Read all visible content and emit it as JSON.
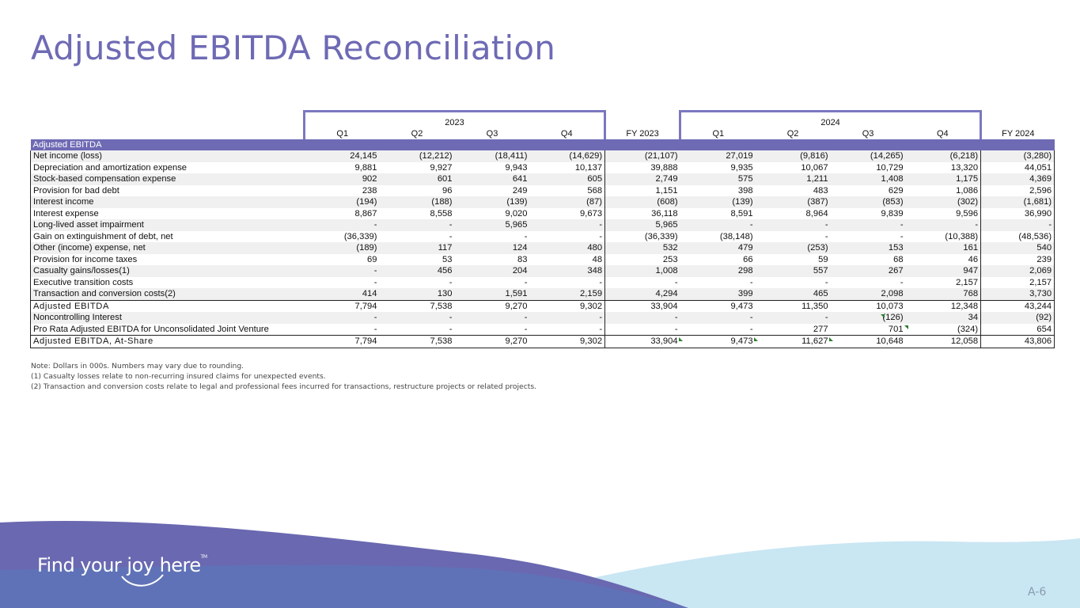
{
  "title": "Adjusted EBITDA Reconciliation",
  "colors": {
    "title": "#6e6ab4",
    "section_header": "#6e6ab4",
    "box_outline": "#7b78bf",
    "band_purple": "#6a68b0",
    "band_blue": "#5e74b8",
    "band_light": "#c9e6f3"
  },
  "table": {
    "years": {
      "y2023": "2023",
      "y2024": "2024"
    },
    "columns": [
      "Q1",
      "Q2",
      "Q3",
      "Q4",
      "FY 2023",
      "Q1",
      "Q2",
      "Q3",
      "Q4",
      "FY 2024"
    ],
    "section_label": "Adjusted EBITDA",
    "rows": [
      {
        "label": "Net income (loss)",
        "values": [
          "24,145",
          "(12,212)",
          "(18,411)",
          "(14,629)",
          "(21,107)",
          "27,019",
          "(9,816)",
          "(14,265)",
          "(6,218)",
          "(3,280)"
        ]
      },
      {
        "label": "Depreciation and amortization expense",
        "values": [
          "9,881",
          "9,927",
          "9,943",
          "10,137",
          "39,888",
          "9,935",
          "10,067",
          "10,729",
          "13,320",
          "44,051"
        ]
      },
      {
        "label": "Stock-based compensation expense",
        "values": [
          "902",
          "601",
          "641",
          "605",
          "2,749",
          "575",
          "1,211",
          "1,408",
          "1,175",
          "4,369"
        ]
      },
      {
        "label": "Provision for bad debt",
        "values": [
          "238",
          "96",
          "249",
          "568",
          "1,151",
          "398",
          "483",
          "629",
          "1,086",
          "2,596"
        ]
      },
      {
        "label": "Interest income",
        "values": [
          "(194)",
          "(188)",
          "(139)",
          "(87)",
          "(608)",
          "(139)",
          "(387)",
          "(853)",
          "(302)",
          "(1,681)"
        ]
      },
      {
        "label": "Interest expense",
        "values": [
          "8,867",
          "8,558",
          "9,020",
          "9,673",
          "36,118",
          "8,591",
          "8,964",
          "9,839",
          "9,596",
          "36,990"
        ]
      },
      {
        "label": "Long-lived asset impairment",
        "values": [
          "-",
          "-",
          "5,965",
          "-",
          "5,965",
          "-",
          "-",
          "-",
          "-",
          "-"
        ]
      },
      {
        "label": "Gain on extinguishment of debt, net",
        "values": [
          "(36,339)",
          "-",
          "-",
          "-",
          "(36,339)",
          "(38,148)",
          "-",
          "-",
          "(10,388)",
          "(48,536)"
        ]
      },
      {
        "label": "Other (income) expense, net",
        "values": [
          "(189)",
          "117",
          "124",
          "480",
          "532",
          "479",
          "(253)",
          "153",
          "161",
          "540"
        ]
      },
      {
        "label": "Provision for income taxes",
        "values": [
          "69",
          "53",
          "83",
          "48",
          "253",
          "66",
          "59",
          "68",
          "46",
          "239"
        ]
      },
      {
        "label": "Casualty gains/losses(1)",
        "values": [
          "-",
          "456",
          "204",
          "348",
          "1,008",
          "298",
          "557",
          "267",
          "947",
          "2,069"
        ]
      },
      {
        "label": "Executive transition costs",
        "values": [
          "-",
          "-",
          "-",
          "-",
          "-",
          "-",
          "-",
          "-",
          "2,157",
          "2,157"
        ]
      },
      {
        "label": "Transaction and conversion costs(2)",
        "values": [
          "414",
          "130",
          "1,591",
          "2,159",
          "4,294",
          "399",
          "465",
          "2,098",
          "768",
          "3,730"
        ]
      }
    ],
    "adjusted_ebitda": {
      "label": "Adjusted EBITDA",
      "values": [
        "7,794",
        "7,538",
        "9,270",
        "9,302",
        "33,904",
        "9,473",
        "11,350",
        "10,073",
        "12,348",
        "43,244"
      ]
    },
    "extra_rows": [
      {
        "label": "Noncontrolling Interest",
        "values": [
          "-",
          "-",
          "-",
          "-",
          "-",
          "-",
          "-",
          "(126)",
          "34",
          "(92)"
        ]
      },
      {
        "label": "Pro Rata Adjusted EBITDA for Unconsolidated Joint Venture",
        "values": [
          "-",
          "-",
          "-",
          "-",
          "-",
          "-",
          "277",
          "701",
          "(324)",
          "654"
        ]
      }
    ],
    "at_share": {
      "label": "Adjusted EBITDA, At-Share",
      "values": [
        "7,794",
        "7,538",
        "9,270",
        "9,302",
        "33,904",
        "9,473",
        "11,627",
        "10,648",
        "12,058",
        "43,806"
      ]
    }
  },
  "notes": [
    "Note: Dollars in 000s. Numbers may vary due to rounding.",
    "(1) Casualty losses relate to non-recurring insured claims for unexpected events.",
    "(2) Transaction and conversion costs relate to legal and professional fees incurred for transactions, restructure projects or related projects."
  ],
  "footer": {
    "tagline": "Find your joy here",
    "trademark": "TM",
    "page_number": "A-6"
  }
}
